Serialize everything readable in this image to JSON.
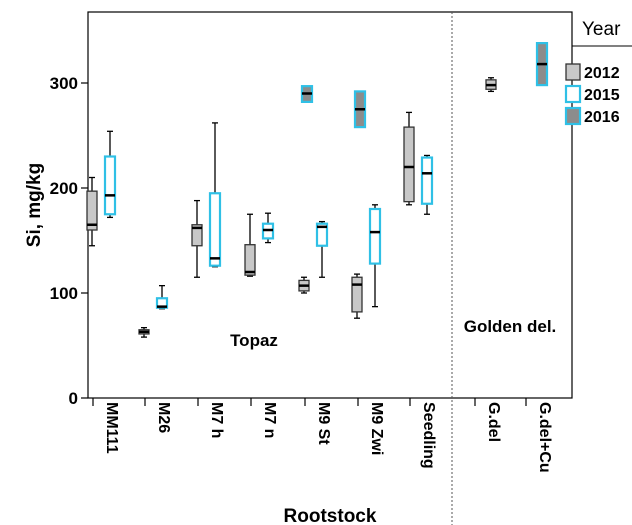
{
  "chart_data": {
    "type": "boxplot",
    "xlabel": "Rootstock",
    "ylabel": "Si, mg/kg",
    "ylim": [
      0,
      360
    ],
    "yticks": [
      0,
      100,
      200,
      300
    ],
    "categories": [
      "MM111",
      "M26",
      "M7 h",
      "M7 n",
      "M9 St",
      "M9 Zwi",
      "Seedling",
      "G.del",
      "G.del+Cu"
    ],
    "annotations": [
      "Topaz",
      "Golden del."
    ],
    "legend": {
      "title": "Year",
      "entries": [
        {
          "name": "2012",
          "fill": "#c8c8c8",
          "stroke": "#333333"
        },
        {
          "name": "2015",
          "fill": "#ffffff",
          "stroke": "#2fc0e6"
        },
        {
          "name": "2016",
          "fill": "#8c8c8c",
          "stroke": "#2fc0e6"
        }
      ]
    },
    "series": [
      {
        "name": "2012",
        "boxes": [
          {
            "category": "MM111",
            "min": 145,
            "q1": 160,
            "median": 165,
            "q3": 197,
            "max": 210
          },
          {
            "category": "M26",
            "min": 58,
            "q1": 61,
            "median": 63,
            "q3": 65,
            "max": 67
          },
          {
            "category": "M7 h",
            "min": 115,
            "q1": 145,
            "median": 162,
            "q3": 165,
            "max": 188
          },
          {
            "category": "M7 n",
            "min": 116,
            "q1": 117,
            "median": 120,
            "q3": 146,
            "max": 175
          },
          {
            "category": "M9 St",
            "min": 100,
            "q1": 102,
            "median": 107,
            "q3": 112,
            "max": 115
          },
          {
            "category": "M9 Zwi",
            "min": 76,
            "q1": 82,
            "median": 108,
            "q3": 115,
            "max": 118
          },
          {
            "category": "Seedling",
            "min": 184,
            "q1": 187,
            "median": 220,
            "q3": 258,
            "max": 272
          },
          {
            "category": "G.del",
            "min": 292,
            "q1": 294,
            "median": 298,
            "q3": 303,
            "max": 305
          }
        ]
      },
      {
        "name": "2015",
        "boxes": [
          {
            "category": "MM111",
            "min": 172,
            "q1": 175,
            "median": 193,
            "q3": 230,
            "max": 254
          },
          {
            "category": "M26",
            "min": 85,
            "q1": 86,
            "median": 87,
            "q3": 95,
            "max": 107
          },
          {
            "category": "M7 h",
            "min": 125,
            "q1": 126,
            "median": 133,
            "q3": 195,
            "max": 262
          },
          {
            "category": "M7 n",
            "min": 148,
            "q1": 152,
            "median": 160,
            "q3": 166,
            "max": 176
          },
          {
            "category": "M9 St",
            "min": 115,
            "q1": 145,
            "median": 163,
            "q3": 166,
            "max": 168
          },
          {
            "category": "M9 Zwi",
            "min": 87,
            "q1": 128,
            "median": 158,
            "q3": 180,
            "max": 184
          },
          {
            "category": "Seedling",
            "min": 175,
            "q1": 185,
            "median": 214,
            "q3": 229,
            "max": 231
          }
        ]
      },
      {
        "name": "2016",
        "boxes": [
          {
            "category": "M9 St",
            "min": 282,
            "q1": 282,
            "median": 290,
            "q3": 297,
            "max": 297
          },
          {
            "category": "M9 Zwi",
            "min": 258,
            "q1": 258,
            "median": 275,
            "q3": 292,
            "max": 292
          },
          {
            "category": "G.del+Cu",
            "min": 298,
            "q1": 298,
            "median": 318,
            "q3": 338,
            "max": 338
          }
        ]
      }
    ]
  }
}
